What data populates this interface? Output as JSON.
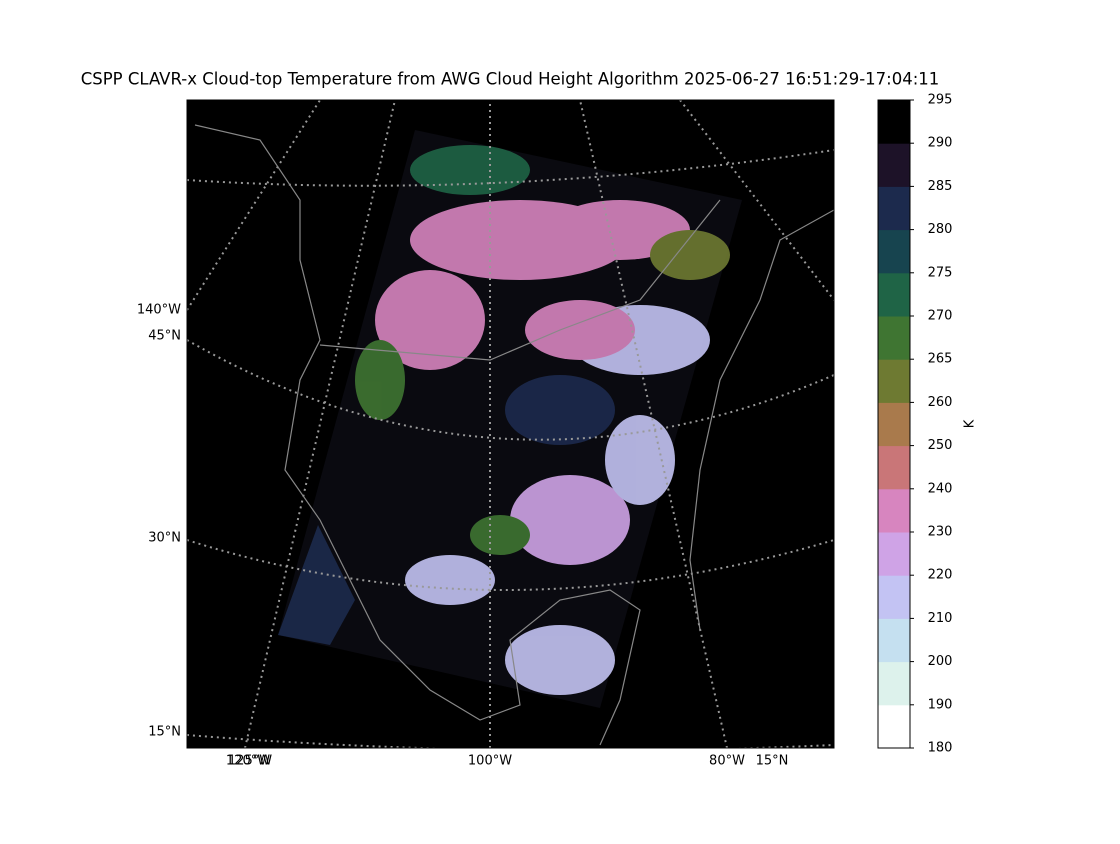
{
  "title": "CSPP CLAVR-x Cloud-top Temperature from AWG Cloud Height Algorithm 2025-06-27 16:51:29-17:04:11",
  "map": {
    "left_labels": [
      "140°W",
      "45°N",
      "30°N",
      "15°N"
    ],
    "bottom_labels": [
      "120°W",
      "125°W",
      "100°W",
      "80°W",
      "15°N"
    ]
  },
  "colorbar": {
    "label": "K",
    "ticks": [
      180,
      190,
      200,
      210,
      220,
      230,
      240,
      250,
      260,
      265,
      270,
      275,
      280,
      285,
      290,
      295
    ],
    "colors": [
      "#ffffff",
      "#ddf2ec",
      "#c5e0f0",
      "#c3c3f3",
      "#cfa3e6",
      "#d785bf",
      "#c97678",
      "#a97a4c",
      "#6e7a32",
      "#3f7532",
      "#1f6446",
      "#17444f",
      "#1c2a4d",
      "#1d1228",
      "#000000"
    ]
  }
}
